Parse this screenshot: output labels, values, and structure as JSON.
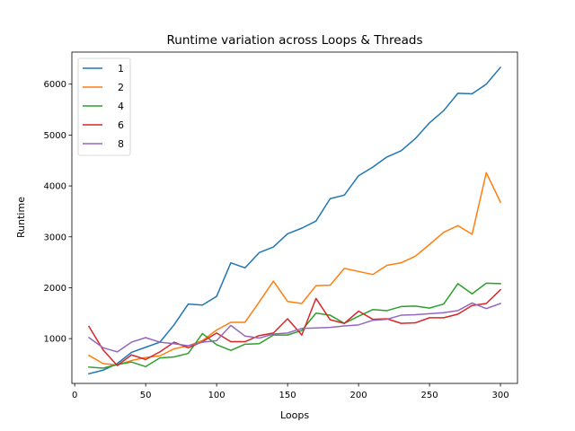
{
  "chart_data": {
    "type": "line",
    "title": "Runtime variation across Loops & Threads",
    "xlabel": "Loops",
    "ylabel": "Runtime",
    "xlim": [
      -2,
      312
    ],
    "ylim": [
      120,
      6630
    ],
    "xticks": [
      0,
      50,
      100,
      150,
      200,
      250,
      300
    ],
    "yticks": [
      1000,
      2000,
      3000,
      4000,
      5000,
      6000
    ],
    "grid": false,
    "legend": "top-left",
    "x": [
      10,
      20,
      30,
      40,
      50,
      60,
      70,
      80,
      90,
      100,
      110,
      120,
      130,
      140,
      150,
      160,
      170,
      180,
      190,
      200,
      210,
      220,
      230,
      240,
      250,
      260,
      270,
      280,
      290,
      300
    ],
    "series": [
      {
        "name": "1",
        "color": "#1f77b4",
        "values": [
          310,
          380,
          510,
          730,
          830,
          930,
          1270,
          1680,
          1660,
          1830,
          2490,
          2390,
          2690,
          2800,
          3060,
          3170,
          3310,
          3750,
          3820,
          4200,
          4370,
          4570,
          4690,
          4930,
          5240,
          5480,
          5820,
          5810,
          6000,
          6330
        ]
      },
      {
        "name": "2",
        "color": "#ff7f0e",
        "values": [
          670,
          510,
          480,
          570,
          630,
          660,
          800,
          860,
          960,
          1170,
          1320,
          1320,
          1720,
          2130,
          1730,
          1690,
          2040,
          2050,
          2380,
          2320,
          2260,
          2440,
          2490,
          2620,
          2850,
          3090,
          3220,
          3050,
          4260,
          3680
        ]
      },
      {
        "name": "4",
        "color": "#2ca02c",
        "values": [
          440,
          420,
          490,
          540,
          450,
          620,
          640,
          710,
          1100,
          880,
          770,
          890,
          900,
          1070,
          1070,
          1160,
          1500,
          1460,
          1300,
          1440,
          1570,
          1550,
          1630,
          1640,
          1600,
          1680,
          2080,
          1880,
          2090,
          2080
        ]
      },
      {
        "name": "6",
        "color": "#d62728",
        "values": [
          1240,
          780,
          470,
          680,
          590,
          740,
          930,
          820,
          940,
          1110,
          940,
          940,
          1060,
          1110,
          1390,
          1070,
          1790,
          1370,
          1300,
          1540,
          1380,
          1390,
          1300,
          1310,
          1410,
          1410,
          1480,
          1650,
          1690,
          1960
        ]
      },
      {
        "name": "8",
        "color": "#9467bd",
        "values": [
          1020,
          820,
          740,
          930,
          1020,
          930,
          900,
          860,
          930,
          960,
          1260,
          1050,
          1010,
          1090,
          1110,
          1200,
          1210,
          1220,
          1250,
          1270,
          1360,
          1380,
          1460,
          1470,
          1490,
          1510,
          1550,
          1700,
          1590,
          1690
        ]
      }
    ]
  }
}
